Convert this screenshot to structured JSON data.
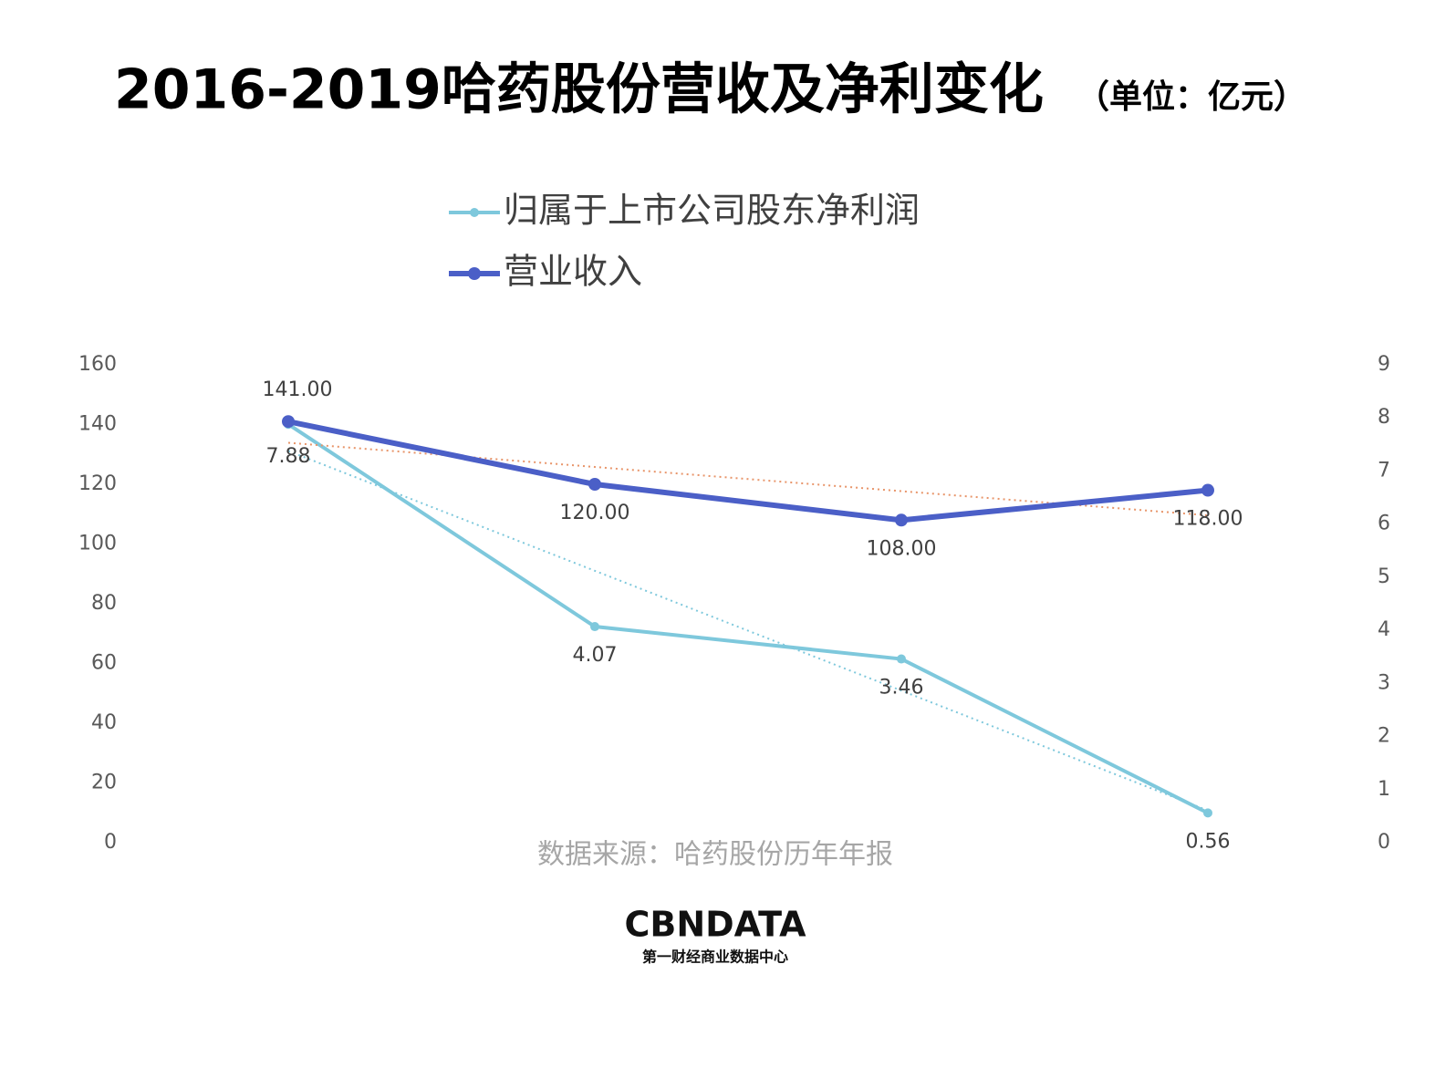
{
  "chart_data": {
    "type": "line",
    "title": "2016-2019哈药股份营收及净利变化",
    "subtitle": "（单位：亿元）",
    "categories": [
      null,
      null,
      null,
      null
    ],
    "ylim": [
      0,
      160
    ],
    "yticks": [
      0,
      20,
      40,
      60,
      80,
      100,
      120,
      140,
      160
    ],
    "y2lim": [
      0,
      9
    ],
    "y2ticks": [
      0,
      1,
      2,
      3,
      4,
      5,
      6,
      7,
      8,
      9
    ],
    "series": [
      {
        "name": "归属于上市公司股东净利润",
        "color": "#7ec8dc",
        "axis": "y2",
        "trendline": true,
        "trendline_color": "#7ec8dc",
        "values": [
          7.88,
          4.07,
          3.46,
          0.56
        ]
      },
      {
        "name": "营业收入",
        "color": "#4b5fc7",
        "trendline": true,
        "trendline_color": "#e8956a",
        "values": [
          141,
          120,
          108,
          118
        ],
        "value_labels": [
          "141.00",
          "120.00",
          "108.00",
          "118.00"
        ]
      }
    ],
    "source": "数据来源：哈药股份历年年报",
    "logo": {
      "name": "CBNDATA",
      "tagline": "第一财经商业数据中心"
    }
  }
}
